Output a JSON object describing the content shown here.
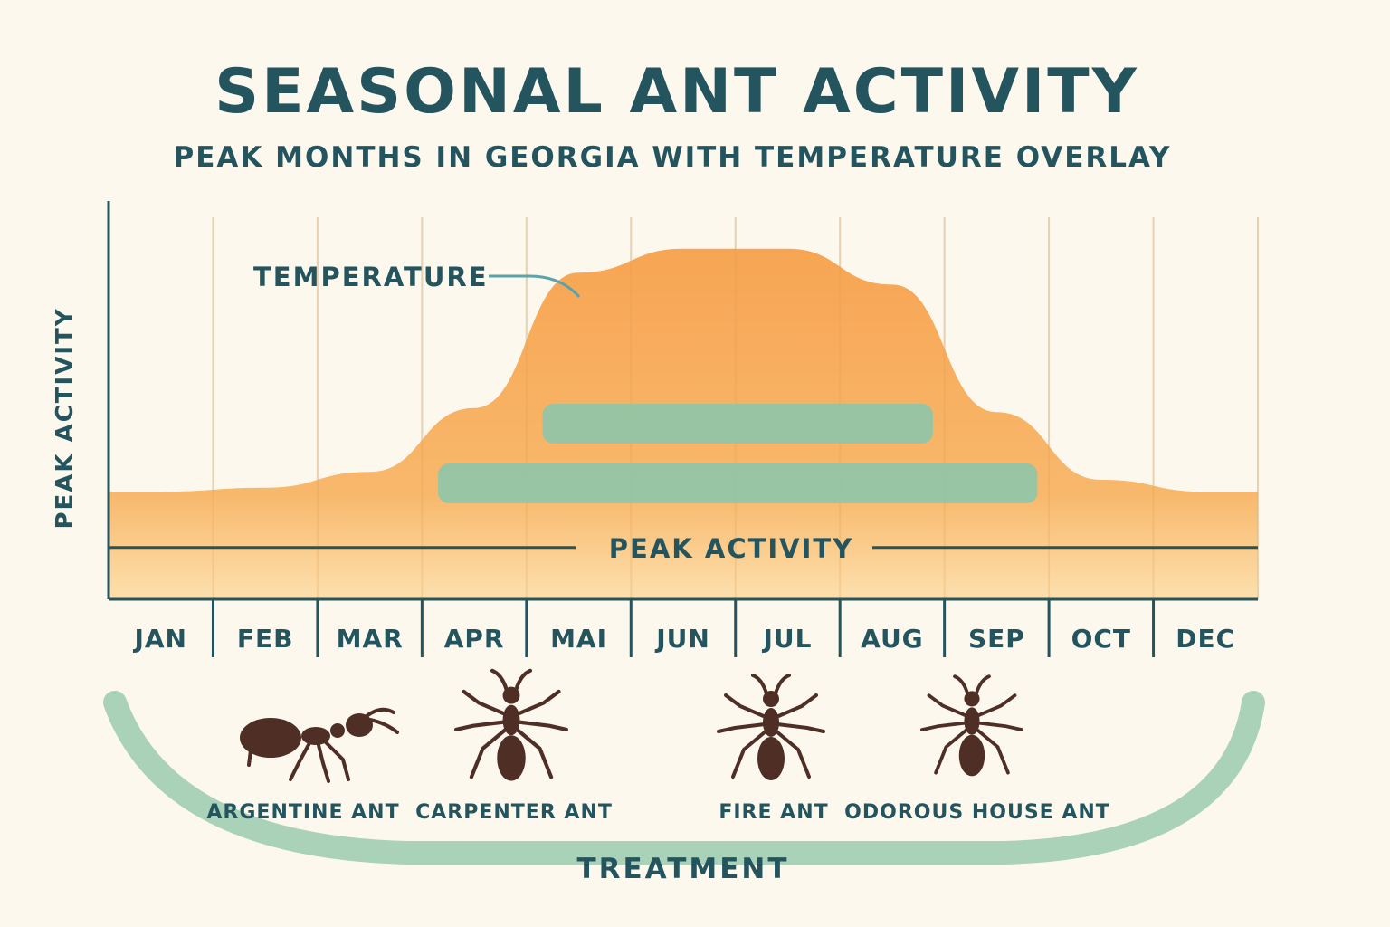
{
  "title": "SEASONAL ANT ACTIVITY",
  "subtitle": "PEAK MONTHS IN GEORGIA WITH TEMPERATURE OVERLAY",
  "chart_data": {
    "type": "area",
    "title": "SEASONAL ANT ACTIVITY",
    "subtitle": "PEAK MONTHS IN GEORGIA WITH TEMPERATURE OVERLAY",
    "ylabel": "PEAK ACTIVITY",
    "categories": [
      "JAN",
      "FEB",
      "MAR",
      "APR",
      "MAI",
      "JUN",
      "JUL",
      "AUG",
      "SEP",
      "OCT",
      "DEC"
    ],
    "series": [
      {
        "name": "TEMPERATURE",
        "type": "area",
        "color": "#f7ad5f",
        "values": [
          0.27,
          0.28,
          0.32,
          0.48,
          0.82,
          0.88,
          0.88,
          0.79,
          0.47,
          0.3,
          0.27
        ]
      }
    ],
    "ylim": [
      0,
      1
    ],
    "bars": [
      {
        "start": "MAI",
        "end": "AUG",
        "color": "#8fc6a8"
      },
      {
        "start": "APR",
        "end": "SEP",
        "color": "#8fc6a8"
      }
    ],
    "reference_line": {
      "label": "PEAK ACTIVITY",
      "value": 0.13
    },
    "grid": true,
    "legend": "annotation"
  },
  "ants": [
    {
      "label": "ARGENTINE ANT",
      "icon": "argentine-ant-icon"
    },
    {
      "label": "CARPENTER ANT",
      "icon": "carpenter-ant-icon"
    },
    {
      "label": "FIRE ANT",
      "icon": "fire-ant-icon"
    },
    {
      "label": "ODOROUS HOUSE ANT",
      "icon": "odorous-house-ant-icon"
    }
  ],
  "treatment_label": "TREATMENT",
  "colors": {
    "background": "#fcf8ee",
    "text": "#24555f",
    "temperature_fill": "#f7ad5f",
    "activity_bars": "#8fc6a8",
    "treatment_band": "#a9d2b9",
    "ant": "#4f2e26"
  }
}
